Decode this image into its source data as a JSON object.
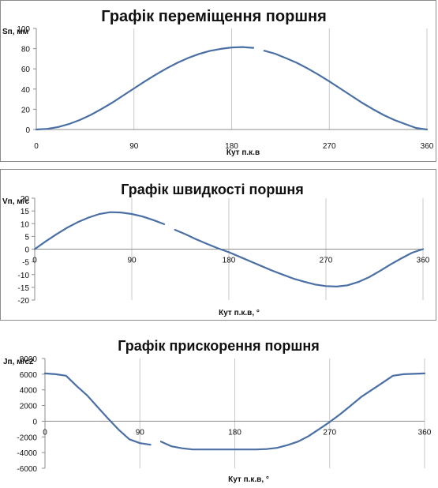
{
  "chart_data": [
    {
      "type": "line",
      "title": "Графік переміщення поршня",
      "ylabel": "Sп, мм",
      "xlabel": "Кут п.к.в",
      "xlim": [
        0,
        360
      ],
      "ylim": [
        0,
        100
      ],
      "xticks": [
        0,
        90,
        180,
        270,
        360
      ],
      "yticks": [
        0,
        20,
        40,
        60,
        80,
        100
      ],
      "xtick_labels": [
        "0",
        "90",
        "180",
        "270",
        "360"
      ],
      "ytick_labels": [
        "0",
        "20",
        "40",
        "60",
        "80",
        "100"
      ],
      "grid": "vertical",
      "series": [
        {
          "color": "#4a6fa5",
          "segments": [
            {
              "x": [
                0,
                10,
                20,
                30,
                40,
                50,
                60,
                70,
                80,
                90,
                100,
                110,
                120,
                130,
                140,
                150,
                160,
                170,
                180,
                190,
                200
              ],
              "y": [
                0,
                0.6,
                2.4,
                5.4,
                9.4,
                14.4,
                20.2,
                26.6,
                33.6,
                40.6,
                47.6,
                54.2,
                60.4,
                66.0,
                70.8,
                74.8,
                77.8,
                79.8,
                81.2,
                81.6,
                80.8
              ]
            },
            {
              "x": [
                210,
                220,
                230,
                240,
                250,
                260,
                270,
                280,
                290,
                300,
                310,
                320,
                330,
                340,
                350,
                360
              ],
              "y": [
                78.0,
                75.0,
                70.6,
                66.0,
                60.4,
                54.2,
                47.6,
                40.6,
                33.6,
                26.6,
                20.2,
                14.4,
                9.4,
                5.4,
                1.5,
                0
              ]
            }
          ]
        }
      ]
    },
    {
      "type": "line",
      "title": "Графік швидкості поршня",
      "ylabel": "Vп, м/с",
      "xlabel": "Кут п.к.в, °",
      "xlim": [
        0,
        360
      ],
      "ylim": [
        -20,
        20
      ],
      "xticks": [
        0,
        90,
        180,
        270,
        360
      ],
      "yticks": [
        -20,
        -15,
        -10,
        -5,
        0,
        5,
        10,
        15,
        20
      ],
      "xtick_labels": [
        "0",
        "90",
        "180",
        "270",
        "360"
      ],
      "ytick_labels": [
        "-20",
        "-15",
        "-10",
        "-5",
        "0",
        "5",
        "10",
        "15",
        "20"
      ],
      "grid": "vertical",
      "series": [
        {
          "color": "#4a6fa5",
          "segments": [
            {
              "x": [
                0,
                10,
                20,
                30,
                40,
                50,
                60,
                70,
                80,
                90,
                100,
                110,
                120
              ],
              "y": [
                0,
                3.0,
                5.8,
                8.4,
                10.6,
                12.4,
                13.8,
                14.5,
                14.4,
                13.8,
                12.8,
                11.4,
                9.8
              ]
            },
            {
              "x": [
                130,
                140,
                150,
                160,
                170,
                180,
                190,
                200,
                210,
                220,
                230,
                240,
                250,
                260,
                270,
                280,
                290,
                300,
                310,
                320,
                330,
                340,
                350,
                360
              ],
              "y": [
                7.6,
                5.8,
                3.8,
                2.0,
                0.3,
                -1.2,
                -3.0,
                -4.8,
                -6.6,
                -8.4,
                -10.0,
                -11.6,
                -12.8,
                -13.9,
                -14.5,
                -14.7,
                -14.2,
                -12.9,
                -11.0,
                -8.6,
                -6.0,
                -3.6,
                -1.4,
                0
              ]
            }
          ]
        }
      ]
    },
    {
      "type": "line",
      "title": "Графік прискорення поршня",
      "ylabel": "Jп, м/с2",
      "xlabel": "Кут п.к.в, °",
      "xlim": [
        0,
        360
      ],
      "ylim": [
        -6000,
        8000
      ],
      "xticks": [
        0,
        90,
        180,
        270,
        360
      ],
      "yticks": [
        -6000,
        -4000,
        -2000,
        0,
        2000,
        4000,
        6000,
        8000
      ],
      "xtick_labels": [
        "0",
        "90",
        "180",
        "270",
        "360"
      ],
      "ytick_labels": [
        "-6000",
        "-4000",
        "-2000",
        "0",
        "2000",
        "4000",
        "6000",
        "8000"
      ],
      "grid": "vertical",
      "series": [
        {
          "color": "#4a6fa5",
          "segments": [
            {
              "x": [
                0,
                10,
                20,
                30,
                40,
                50,
                60,
                70,
                80,
                90,
                100
              ],
              "y": [
                6100,
                6000,
                5800,
                4500,
                3300,
                1800,
                300,
                -1100,
                -2300,
                -2800,
                -3000
              ]
            },
            {
              "x": [
                110,
                120,
                130,
                140,
                150,
                160,
                170,
                180,
                190,
                200,
                210,
                220,
                230,
                240,
                250,
                260,
                270,
                280,
                290,
                300,
                310,
                320,
                330,
                340,
                350,
                360
              ],
              "y": [
                -2600,
                -3200,
                -3450,
                -3600,
                -3600,
                -3600,
                -3600,
                -3600,
                -3600,
                -3600,
                -3550,
                -3400,
                -3050,
                -2600,
                -1900,
                -1000,
                -100,
                900,
                2000,
                3100,
                4000,
                4900,
                5800,
                6000,
                6050,
                6100
              ]
            }
          ]
        }
      ]
    }
  ]
}
